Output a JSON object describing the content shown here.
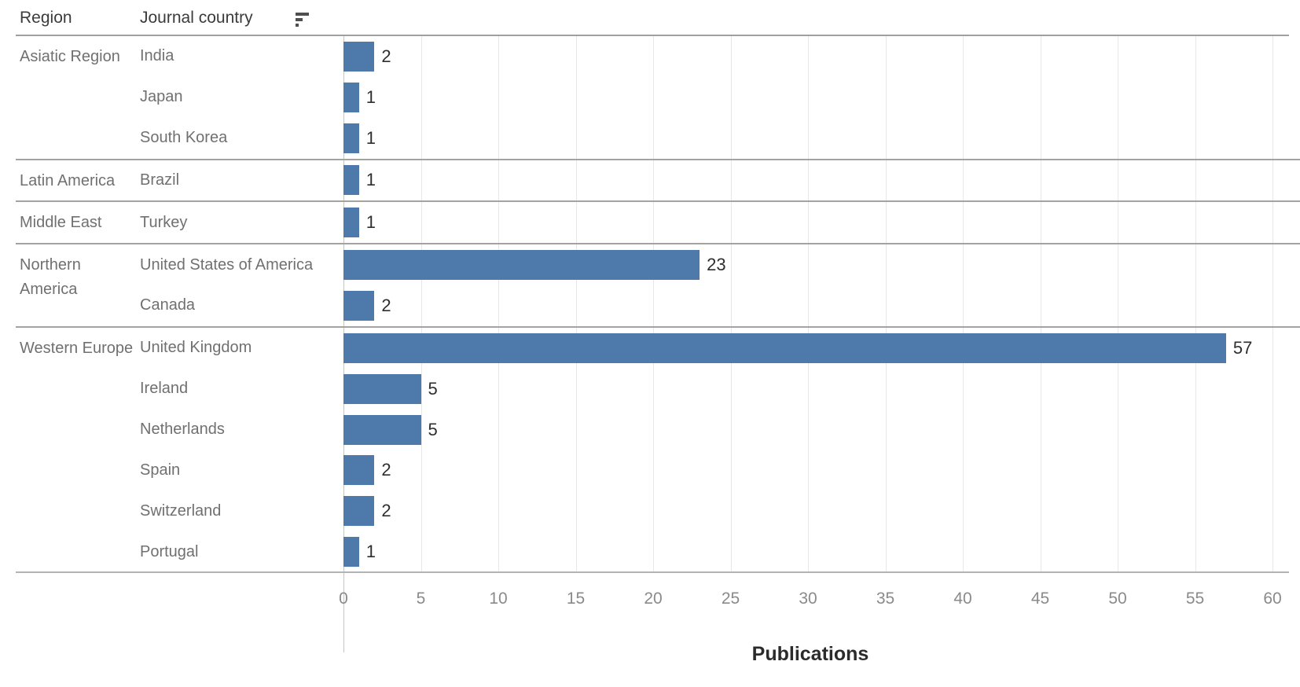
{
  "header": {
    "region_label": "Region",
    "country_label": "Journal country"
  },
  "colors": {
    "bar": "#4e7aab"
  },
  "chart_data": {
    "type": "bar",
    "orientation": "horizontal",
    "xlabel": "Publications",
    "xlim": [
      0,
      60
    ],
    "ticks": [
      0,
      5,
      10,
      15,
      20,
      25,
      30,
      35,
      40,
      45,
      50,
      55,
      60
    ],
    "grid": true,
    "groups": [
      {
        "region": "Asiatic Region",
        "rows": [
          {
            "country": "India",
            "value": 2
          },
          {
            "country": "Japan",
            "value": 1
          },
          {
            "country": "South Korea",
            "value": 1
          }
        ]
      },
      {
        "region": "Latin America",
        "rows": [
          {
            "country": "Brazil",
            "value": 1
          }
        ]
      },
      {
        "region": "Middle East",
        "rows": [
          {
            "country": "Turkey",
            "value": 1
          }
        ]
      },
      {
        "region": "Northern America",
        "rows": [
          {
            "country": "United States of America",
            "value": 23
          },
          {
            "country": "Canada",
            "value": 2
          }
        ]
      },
      {
        "region": "Western Europe",
        "rows": [
          {
            "country": "United Kingdom",
            "value": 57
          },
          {
            "country": "Ireland",
            "value": 5
          },
          {
            "country": "Netherlands",
            "value": 5
          },
          {
            "country": "Spain",
            "value": 2
          },
          {
            "country": "Switzerland",
            "value": 2
          },
          {
            "country": "Portugal",
            "value": 1
          }
        ]
      }
    ]
  }
}
